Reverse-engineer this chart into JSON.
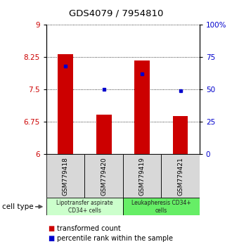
{
  "title": "GDS4079 / 7954810",
  "samples": [
    "GSM779418",
    "GSM779420",
    "GSM779419",
    "GSM779421"
  ],
  "bar_values": [
    8.32,
    6.92,
    8.18,
    6.88
  ],
  "dot_values_pct": [
    68,
    50,
    62,
    49
  ],
  "bar_color": "#cc0000",
  "dot_color": "#0000cc",
  "ylim_left": [
    6,
    9
  ],
  "ylim_right": [
    0,
    100
  ],
  "yticks_left": [
    6,
    6.75,
    7.5,
    8.25,
    9
  ],
  "yticks_left_labels": [
    "6",
    "6.75",
    "7.5",
    "8.25",
    "9"
  ],
  "yticks_right": [
    0,
    25,
    50,
    75,
    100
  ],
  "yticks_right_labels": [
    "0",
    "25",
    "50",
    "75",
    "100%"
  ],
  "groups": [
    {
      "label": "Lipotransfer aspirate\nCD34+ cells",
      "samples": [
        0,
        1
      ],
      "color": "#ccffcc"
    },
    {
      "label": "Leukapheresis CD34+\ncells",
      "samples": [
        2,
        3
      ],
      "color": "#66ee66"
    }
  ],
  "cell_type_label": "cell type",
  "legend_bar_label": "transformed count",
  "legend_dot_label": "percentile rank within the sample",
  "bar_bottom": 6.0,
  "bar_width": 0.4
}
